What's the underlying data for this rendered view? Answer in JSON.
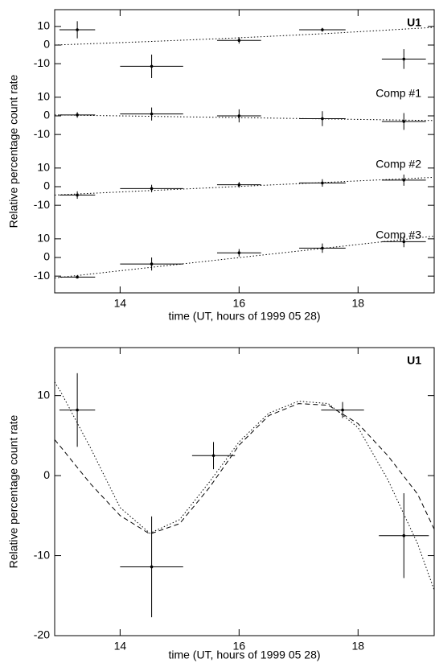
{
  "chart_data": [
    {
      "type": "errorbar",
      "x_label": "time (UT, hours of 1999 05 28)",
      "y_label": "Relative percentage count rate",
      "xlim": [
        12.9,
        19.28
      ],
      "xticks": [
        14,
        16,
        18
      ],
      "panels": [
        {
          "ylim": [
            -19,
            19
          ],
          "yticks": [
            -10,
            0,
            10
          ],
          "series": [
            {
              "name": "U1",
              "x": [
                13.28,
                14.53,
                16.0,
                17.4,
                18.77
              ],
              "xerr": [
                0.3,
                0.53,
                0.37,
                0.39,
                0.37
              ],
              "values": [
                8.2,
                -11.4,
                2.5,
                8.2,
                -7.5
              ],
              "yerr": [
                4.6,
                6.3,
                1.7,
                1.0,
                5.3
              ]
            }
          ],
          "fit_x": [
            12.9,
            14.5,
            16.0,
            17.5,
            19.28
          ],
          "fit_values": [
            0,
            1.9,
            3.9,
            6.2,
            9.5
          ]
        },
        {
          "ylim": [
            -19,
            19
          ],
          "yticks": [
            -10,
            0,
            10
          ],
          "series": [
            {
              "name": "Comp #1",
              "x": [
                13.28,
                14.53,
                16.0,
                17.4,
                18.77
              ],
              "xerr": [
                0.3,
                0.53,
                0.37,
                0.39,
                0.37
              ],
              "values": [
                0.5,
                1,
                0,
                -1.5,
                -3
              ],
              "yerr": [
                1.5,
                3.5,
                3.5,
                4,
                4.5
              ]
            }
          ],
          "fit_x": [
            12.9,
            19.28
          ],
          "fit_values": [
            0.5,
            -2.5
          ]
        },
        {
          "ylim": [
            -19,
            19
          ],
          "yticks": [
            -10,
            0,
            10
          ],
          "series": [
            {
              "name": "Comp #2",
              "x": [
                13.28,
                14.53,
                16.0,
                17.4,
                18.77
              ],
              "xerr": [
                0.3,
                0.53,
                0.37,
                0.39,
                0.37
              ],
              "values": [
                -4.5,
                -1,
                1,
                2,
                3.5
              ],
              "yerr": [
                2,
                2,
                1.5,
                2,
                3
              ]
            }
          ],
          "fit_x": [
            12.9,
            19.28
          ],
          "fit_values": [
            -4.5,
            5
          ]
        },
        {
          "ylim": [
            -19,
            19
          ],
          "yticks": [
            -10,
            0,
            10
          ],
          "series": [
            {
              "name": "Comp #3",
              "x": [
                13.28,
                14.53,
                16.0,
                17.4,
                18.77
              ],
              "xerr": [
                0.3,
                0.53,
                0.37,
                0.39,
                0.37
              ],
              "values": [
                -10.5,
                -3.5,
                2.5,
                5,
                8.5
              ],
              "yerr": [
                0.5,
                3.5,
                2,
                2.5,
                3
              ]
            }
          ],
          "fit_x": [
            12.9,
            19.28
          ],
          "fit_values": [
            -11,
            11.5
          ]
        }
      ]
    },
    {
      "type": "errorbar",
      "x_label": "time  (UT, hours of 1999 05 28)",
      "y_label": "Relative percentage count rate",
      "xlim": [
        12.9,
        19.28
      ],
      "xticks": [
        14,
        16,
        18
      ],
      "panels": [
        {
          "ylim": [
            -20,
            16
          ],
          "yticks": [
            -20,
            -10,
            0,
            10
          ],
          "series": [
            {
              "name": "U1",
              "x": [
                13.28,
                14.53,
                15.57,
                17.74,
                18.77
              ],
              "xerr": [
                0.3,
                0.53,
                0.36,
                0.36,
                0.42
              ],
              "values": [
                8.2,
                -11.4,
                2.5,
                8.2,
                -7.5
              ],
              "yerr": [
                4.6,
                6.3,
                1.7,
                1.0,
                5.3
              ]
            }
          ],
          "curves": [
            {
              "style": "dotted",
              "x": [
                12.9,
                13.0,
                13.5,
                14.0,
                14.5,
                15.0,
                15.5,
                16.0,
                16.5,
                17.0,
                17.5,
                18.0,
                18.5,
                19.0,
                19.28
              ],
              "values": [
                11.7,
                10.5,
                3.5,
                -4,
                -7.2,
                -5.5,
                -0.8,
                4.2,
                7.8,
                9.3,
                9.0,
                6.0,
                -0.5,
                -8.5,
                -14.3
              ]
            },
            {
              "style": "dashed",
              "x": [
                12.9,
                13.0,
                13.5,
                14.0,
                14.5,
                15.0,
                15.5,
                16.0,
                16.5,
                17.0,
                17.5,
                18.0,
                18.5,
                19.0,
                19.28
              ],
              "values": [
                4.5,
                3.6,
                -1,
                -5,
                -7.3,
                -6,
                -1.5,
                3.8,
                7.5,
                9.0,
                8.8,
                6.5,
                2.5,
                -2.3,
                -6.7
              ]
            }
          ]
        }
      ]
    }
  ]
}
